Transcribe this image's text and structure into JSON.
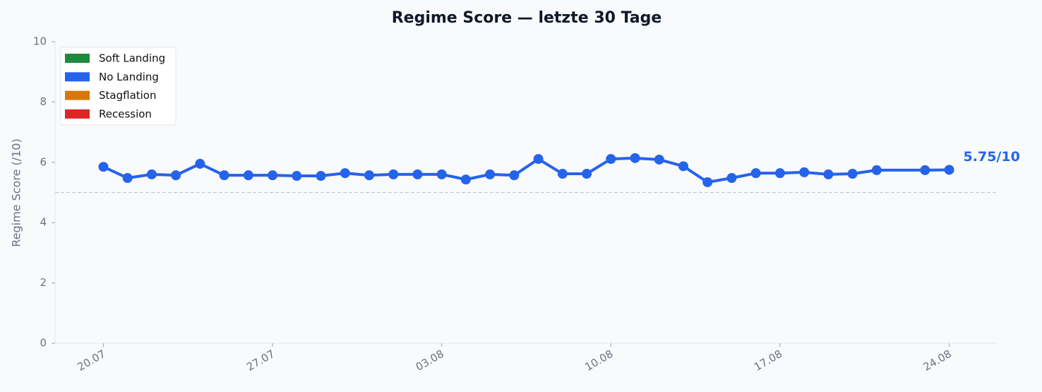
{
  "chart_data": {
    "type": "line",
    "title": "Regime Score — letzte 30 Tage",
    "y_label": "Regime Score (/10)",
    "x": [
      "20.07",
      "21.07",
      "22.07",
      "23.07",
      "24.07",
      "25.07",
      "26.07",
      "27.07",
      "28.07",
      "29.07",
      "30.07",
      "31.07",
      "01.08",
      "02.08",
      "03.08",
      "04.08",
      "05.08",
      "06.08",
      "07.08",
      "08.08",
      "09.08",
      "10.08",
      "11.08",
      "12.08",
      "13.08",
      "14.08",
      "15.08",
      "16.08",
      "17.08",
      "18.08",
      "19.08",
      "20.08",
      "21.08",
      "23.08",
      "24.08"
    ],
    "series": [
      {
        "name": "Regime Score",
        "color": "#2563eb",
        "values": [
          5.85,
          5.48,
          5.6,
          5.57,
          5.95,
          5.57,
          5.57,
          5.57,
          5.55,
          5.55,
          5.64,
          5.57,
          5.6,
          5.6,
          5.6,
          5.43,
          5.6,
          5.57,
          6.11,
          5.62,
          5.62,
          6.11,
          6.14,
          6.09,
          5.87,
          5.34,
          5.48,
          5.64,
          5.64,
          5.67,
          5.6,
          5.62,
          5.74,
          5.74,
          5.75
        ]
      }
    ],
    "annotation": "5.75/10",
    "reference_line": 5,
    "xlim": [
      "18.07",
      "26.08"
    ],
    "xticks": [
      "20.07",
      "27.07",
      "03.08",
      "10.08",
      "17.08",
      "24.08"
    ],
    "ylim": [
      0,
      10
    ],
    "yticks": [
      0,
      2,
      4,
      6,
      8,
      10
    ],
    "legend_position": "upper left",
    "legend": [
      {
        "name": "Soft Landing",
        "color": "#1e8a3e"
      },
      {
        "name": "No Landing",
        "color": "#2563eb"
      },
      {
        "name": "Stagflation",
        "color": "#d97706"
      },
      {
        "name": "Recession",
        "color": "#dc2626"
      }
    ]
  }
}
